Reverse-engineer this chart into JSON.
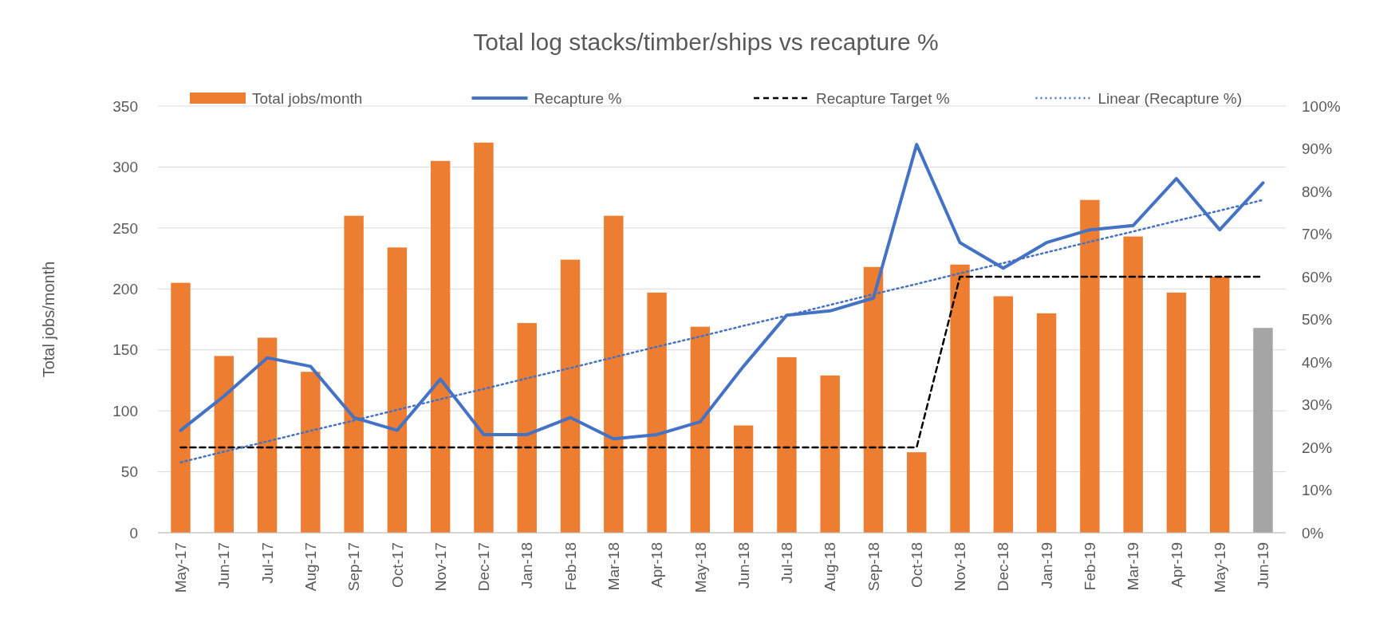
{
  "chart_data": {
    "type": "bar",
    "title": "Total log stacks/timber/ships vs recapture %",
    "ylabel": "Total jobs/month",
    "categories": [
      "May-17",
      "Jun-17",
      "Jul-17",
      "Aug-17",
      "Sep-17",
      "Oct-17",
      "Nov-17",
      "Dec-17",
      "Jan-18",
      "Feb-18",
      "Mar-18",
      "Apr-18",
      "May-18",
      "Jun-18",
      "Jul-18",
      "Aug-18",
      "Sep-18",
      "Oct-18",
      "Nov-18",
      "Dec-18",
      "Jan-19",
      "Feb-19",
      "Mar-19",
      "Apr-19",
      "May-19",
      "Jun-19"
    ],
    "series": [
      {
        "name": "Total jobs/month",
        "color": "#ed7d31",
        "colors": [
          "#ed7d31",
          "#ed7d31",
          "#ed7d31",
          "#ed7d31",
          "#ed7d31",
          "#ed7d31",
          "#ed7d31",
          "#ed7d31",
          "#ed7d31",
          "#ed7d31",
          "#ed7d31",
          "#ed7d31",
          "#ed7d31",
          "#ed7d31",
          "#ed7d31",
          "#ed7d31",
          "#ed7d31",
          "#ed7d31",
          "#ed7d31",
          "#ed7d31",
          "#ed7d31",
          "#ed7d31",
          "#ed7d31",
          "#ed7d31",
          "#ed7d31",
          "#a5a5a5"
        ],
        "values": [
          205,
          145,
          160,
          132,
          260,
          234,
          305,
          320,
          172,
          224,
          260,
          197,
          169,
          88,
          144,
          129,
          218,
          66,
          220,
          194,
          180,
          273,
          243,
          197,
          210,
          168
        ]
      },
      {
        "name": "Recapture %",
        "type": "line",
        "axis": "y2",
        "color": "#4472c4",
        "line_style": "solid",
        "values": [
          24,
          32,
          41,
          39,
          27,
          24,
          36,
          23,
          23,
          27,
          22,
          23,
          26,
          39,
          51,
          52,
          55,
          91,
          68,
          62,
          68,
          71,
          72,
          83,
          71,
          82
        ]
      },
      {
        "name": "Recapture Target %",
        "type": "line",
        "axis": "y2",
        "color": "#000000",
        "line_style": "dashed",
        "values": [
          20,
          20,
          20,
          20,
          20,
          20,
          20,
          20,
          20,
          20,
          20,
          20,
          20,
          20,
          20,
          20,
          20,
          20,
          60,
          60,
          60,
          60,
          60,
          60,
          60,
          60
        ]
      },
      {
        "name": "Linear (Recapture %)",
        "type": "line",
        "axis": "y2",
        "color": "#4472c4",
        "line_style": "dotted",
        "values": [
          16.5,
          19.0,
          21.4,
          23.9,
          26.3,
          28.8,
          31.3,
          33.7,
          36.2,
          38.6,
          41.1,
          43.6,
          46.0,
          48.5,
          50.9,
          53.4,
          55.9,
          58.3,
          60.8,
          63.2,
          65.7,
          68.2,
          70.6,
          73.1,
          75.5,
          78.0
        ]
      }
    ],
    "ylim": [
      0,
      350
    ],
    "yticks": [
      0,
      50,
      100,
      150,
      200,
      250,
      300,
      350
    ],
    "y2lim": [
      0,
      100
    ],
    "y2ticks": [
      {
        "value": 0,
        "label": "0%"
      },
      {
        "value": 10,
        "label": "10%"
      },
      {
        "value": 20,
        "label": "20%"
      },
      {
        "value": 30,
        "label": "30%"
      },
      {
        "value": 40,
        "label": "40%"
      },
      {
        "value": 50,
        "label": "50%"
      },
      {
        "value": 60,
        "label": "60%"
      },
      {
        "value": 70,
        "label": "70%"
      },
      {
        "value": 80,
        "label": "80%"
      },
      {
        "value": 90,
        "label": "90%"
      },
      {
        "value": 100,
        "label": "100%"
      }
    ],
    "grid": "y",
    "legend": "top",
    "marker": "none"
  }
}
